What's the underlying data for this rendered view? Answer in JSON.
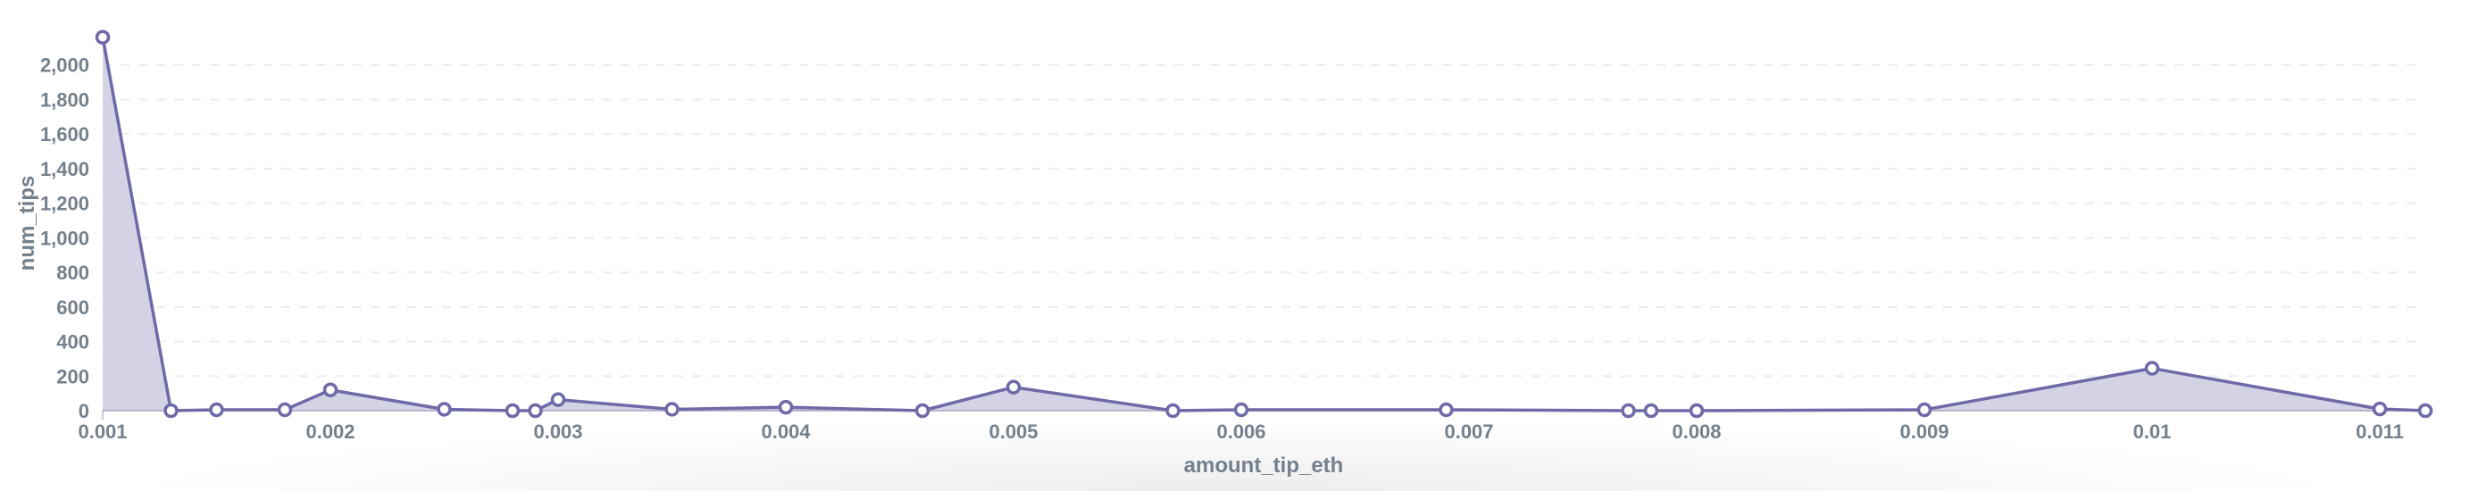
{
  "chart_data": {
    "type": "area",
    "xlabel": "amount_tip_eth",
    "ylabel": "num_tips",
    "xlim": [
      0.001,
      0.0112
    ],
    "ylim": [
      0,
      2200
    ],
    "grid": true,
    "line_color": "#6E6AA8",
    "fill_color": "#D4D3E5",
    "x_ticks": [
      "0.001",
      "0.002",
      "0.003",
      "0.004",
      "0.005",
      "0.006",
      "0.007",
      "0.008",
      "0.009",
      "0.01",
      "0.011"
    ],
    "y_ticks": [
      "0",
      "200",
      "400",
      "600",
      "800",
      "1,000",
      "1,200",
      "1,400",
      "1,600",
      "1,800",
      "2,000"
    ],
    "points": [
      {
        "x": 0.001,
        "y": 2160
      },
      {
        "x": 0.0013,
        "y": 0
      },
      {
        "x": 0.0015,
        "y": 5
      },
      {
        "x": 0.0018,
        "y": 5
      },
      {
        "x": 0.002,
        "y": 120
      },
      {
        "x": 0.0025,
        "y": 8
      },
      {
        "x": 0.0028,
        "y": 0
      },
      {
        "x": 0.0029,
        "y": 0
      },
      {
        "x": 0.003,
        "y": 64
      },
      {
        "x": 0.0035,
        "y": 8
      },
      {
        "x": 0.004,
        "y": 20
      },
      {
        "x": 0.0046,
        "y": 0
      },
      {
        "x": 0.005,
        "y": 136
      },
      {
        "x": 0.0057,
        "y": 0
      },
      {
        "x": 0.006,
        "y": 5
      },
      {
        "x": 0.0069,
        "y": 5
      },
      {
        "x": 0.0077,
        "y": 0
      },
      {
        "x": 0.0078,
        "y": 0
      },
      {
        "x": 0.008,
        "y": 0
      },
      {
        "x": 0.009,
        "y": 5
      },
      {
        "x": 0.01,
        "y": 245
      },
      {
        "x": 0.011,
        "y": 10
      },
      {
        "x": 0.0112,
        "y": 0
      }
    ]
  }
}
